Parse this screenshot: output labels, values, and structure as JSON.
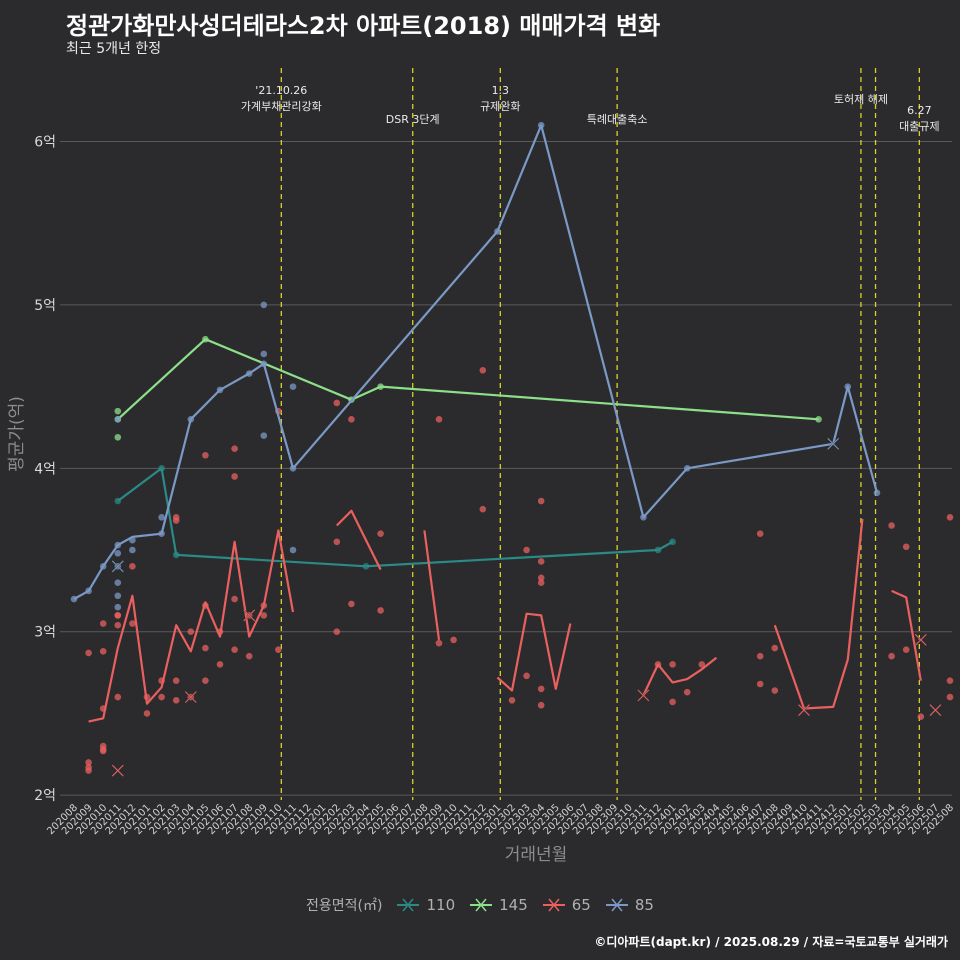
{
  "title": "정관가화만사성더테라스2차 아파트(2018) 매매가격 변화",
  "subtitle": "최근 5개년 한정",
  "credit": "©디아파트(dapt.kr) / 2025.08.29 / 자료=국토교통부 실거래가",
  "chart_data": {
    "type": "line",
    "xlabel": "거래년월",
    "ylabel": "평균가(억)",
    "ylim": [
      1.97,
      6.45
    ],
    "yticks": [
      2,
      3,
      4,
      5,
      6
    ],
    "ytick_labels": [
      "2억",
      "3억",
      "4억",
      "5억",
      "6억"
    ],
    "categories": [
      "202008",
      "202009",
      "202010",
      "202011",
      "202012",
      "202101",
      "202102",
      "202103",
      "202104",
      "202105",
      "202106",
      "202107",
      "202108",
      "202109",
      "202110",
      "202111",
      "202112",
      "202201",
      "202202",
      "202203",
      "202204",
      "202205",
      "202206",
      "202207",
      "202208",
      "202209",
      "202210",
      "202211",
      "202212",
      "202301",
      "202302",
      "202303",
      "202304",
      "202305",
      "202306",
      "202307",
      "202308",
      "202309",
      "202310",
      "202311",
      "202312",
      "202401",
      "202402",
      "202403",
      "202404",
      "202405",
      "202406",
      "202407",
      "202408",
      "202409",
      "202410",
      "202411",
      "202412",
      "202501",
      "202502",
      "202503",
      "202504",
      "202505",
      "202506",
      "202507",
      "202508"
    ],
    "annotations": [
      {
        "x": 14.2,
        "lines": [
          "'21.10.26",
          "가계부채관리강화"
        ]
      },
      {
        "x": 23.2,
        "lines": [
          "DSR 3단계"
        ]
      },
      {
        "x": 29.2,
        "lines": [
          "1.3",
          "규제완화"
        ]
      },
      {
        "x": 37.2,
        "lines": [
          "특례대출축소"
        ]
      },
      {
        "x": 53.9,
        "lines": [
          "토허제 해제"
        ]
      },
      {
        "x": 54.9,
        "lines": []
      },
      {
        "x": 57.9,
        "lines": [
          "6.27",
          "대출규제"
        ]
      }
    ],
    "legend_title": "전용면적(㎡)",
    "series": [
      {
        "name": "110",
        "color": "#2a8a86",
        "line": [
          [
            3,
            3.8
          ],
          [
            6,
            4.0
          ],
          [
            7,
            3.47
          ],
          [
            20,
            3.4
          ],
          [
            40,
            3.5
          ],
          [
            41,
            3.55
          ]
        ],
        "points": [
          [
            3,
            3.8
          ],
          [
            6,
            4.0
          ],
          [
            7,
            3.47
          ],
          [
            20,
            3.4
          ],
          [
            40,
            3.5
          ],
          [
            41,
            3.55
          ]
        ],
        "crosses": []
      },
      {
        "name": "145",
        "color": "#8de08a",
        "line": [
          [
            3,
            4.3
          ],
          [
            9,
            4.79
          ],
          [
            19,
            4.42
          ],
          [
            21,
            4.5
          ],
          [
            51,
            4.3
          ]
        ],
        "points": [
          [
            3,
            4.35
          ],
          [
            3,
            4.3
          ],
          [
            3,
            4.19
          ],
          [
            9,
            4.79
          ],
          [
            19,
            4.42
          ],
          [
            21,
            4.5
          ],
          [
            51,
            4.3
          ]
        ],
        "crosses": []
      },
      {
        "name": "65",
        "color": "#e9605f",
        "segments": [
          [
            [
              1,
              2.45
            ],
            [
              2,
              2.47
            ],
            [
              3,
              2.9
            ],
            [
              4,
              3.22
            ],
            [
              5,
              2.56
            ],
            [
              6,
              2.66
            ],
            [
              7,
              3.04
            ],
            [
              8,
              2.88
            ],
            [
              9,
              3.18
            ],
            [
              10,
              2.97
            ],
            [
              11,
              3.55
            ],
            [
              12,
              2.97
            ],
            [
              13,
              3.16
            ],
            [
              14,
              3.62
            ],
            [
              15,
              3.12
            ]
          ],
          [
            [
              18,
              3.65
            ],
            [
              19,
              3.74
            ],
            [
              21,
              3.38
            ]
          ],
          [
            [
              24,
              3.62
            ],
            [
              25,
              2.95
            ]
          ],
          [
            [
              29,
              2.72
            ],
            [
              30,
              2.64
            ],
            [
              31,
              3.11
            ],
            [
              32,
              3.1
            ],
            [
              33,
              2.65
            ],
            [
              34,
              3.05
            ]
          ],
          [
            [
              39,
              2.61
            ],
            [
              40,
              2.8
            ],
            [
              41,
              2.69
            ],
            [
              42,
              2.71
            ],
            [
              43,
              2.77
            ],
            [
              44,
              2.84
            ]
          ],
          [
            [
              48,
              3.04
            ],
            [
              50,
              2.53
            ],
            [
              52,
              2.54
            ],
            [
              53,
              2.83
            ],
            [
              54,
              3.69
            ]
          ],
          [
            [
              56,
              3.25
            ],
            [
              57,
              3.21
            ],
            [
              58,
              2.7
            ]
          ]
        ],
        "points": [
          [
            1,
            2.2
          ],
          [
            1,
            2.17
          ],
          [
            1,
            2.15
          ],
          [
            1,
            2.87
          ],
          [
            2,
            2.3
          ],
          [
            2,
            2.28
          ],
          [
            2,
            2.27
          ],
          [
            2,
            2.53
          ],
          [
            2,
            3.05
          ],
          [
            2,
            2.88
          ],
          [
            3,
            3.1
          ],
          [
            3,
            3.1
          ],
          [
            3,
            2.6
          ],
          [
            3,
            3.04
          ],
          [
            4,
            3.4
          ],
          [
            4,
            3.05
          ],
          [
            5,
            2.5
          ],
          [
            5,
            2.6
          ],
          [
            6,
            2.7
          ],
          [
            6,
            2.6
          ],
          [
            7,
            3.7
          ],
          [
            7,
            3.68
          ],
          [
            7,
            2.7
          ],
          [
            7,
            2.58
          ],
          [
            8,
            2.6
          ],
          [
            8,
            3.0
          ],
          [
            9,
            4.08
          ],
          [
            9,
            3.16
          ],
          [
            9,
            2.9
          ],
          [
            9,
            2.7
          ],
          [
            10,
            3.0
          ],
          [
            10,
            2.8
          ],
          [
            11,
            4.12
          ],
          [
            11,
            3.95
          ],
          [
            11,
            3.2
          ],
          [
            11,
            2.89
          ],
          [
            12,
            3.1
          ],
          [
            12,
            2.85
          ],
          [
            13,
            3.16
          ],
          [
            13,
            3.1
          ],
          [
            14,
            4.35
          ],
          [
            14,
            2.89
          ],
          [
            18,
            4.4
          ],
          [
            18,
            3.55
          ],
          [
            18,
            3.0
          ],
          [
            19,
            4.3
          ],
          [
            19,
            3.17
          ],
          [
            21,
            3.6
          ],
          [
            21,
            3.13
          ],
          [
            25,
            4.3
          ],
          [
            25,
            2.93
          ],
          [
            26,
            2.95
          ],
          [
            28,
            4.6
          ],
          [
            28,
            3.75
          ],
          [
            30,
            2.58
          ],
          [
            31,
            3.5
          ],
          [
            31,
            2.73
          ],
          [
            32,
            3.8
          ],
          [
            32,
            3.43
          ],
          [
            32,
            3.33
          ],
          [
            32,
            3.3
          ],
          [
            32,
            2.65
          ],
          [
            32,
            2.55
          ],
          [
            40,
            2.8
          ],
          [
            41,
            2.57
          ],
          [
            41,
            2.8
          ],
          [
            42,
            2.63
          ],
          [
            43,
            2.8
          ],
          [
            47,
            3.6
          ],
          [
            47,
            2.85
          ],
          [
            47,
            2.68
          ],
          [
            48,
            2.9
          ],
          [
            48,
            2.64
          ],
          [
            56,
            3.65
          ],
          [
            56,
            2.85
          ],
          [
            57,
            3.52
          ],
          [
            57,
            2.89
          ],
          [
            58,
            2.48
          ],
          [
            60,
            3.7
          ],
          [
            60,
            2.7
          ],
          [
            60,
            2.6
          ]
        ],
        "crosses": [
          [
            3,
            2.15
          ],
          [
            8,
            2.6
          ],
          [
            12,
            3.1
          ],
          [
            39,
            2.61
          ],
          [
            50,
            2.52
          ],
          [
            58,
            2.95
          ],
          [
            59,
            2.52
          ]
        ]
      },
      {
        "name": "85",
        "color": "#7b99c6",
        "line": [
          [
            0,
            3.2
          ],
          [
            1,
            3.25
          ],
          [
            2,
            3.4
          ],
          [
            3,
            3.53
          ],
          [
            4,
            3.58
          ],
          [
            6,
            3.6
          ],
          [
            8,
            4.3
          ],
          [
            10,
            4.48
          ],
          [
            12,
            4.58
          ],
          [
            13,
            4.64
          ],
          [
            15,
            4.0
          ],
          [
            29,
            5.45
          ],
          [
            32,
            6.1
          ],
          [
            39,
            3.7
          ],
          [
            42,
            4.0
          ],
          [
            52,
            4.15
          ],
          [
            53,
            4.5
          ],
          [
            55,
            3.85
          ]
        ],
        "points": [
          [
            0,
            3.2
          ],
          [
            1,
            3.25
          ],
          [
            2,
            3.4
          ],
          [
            3,
            3.53
          ],
          [
            3,
            3.48
          ],
          [
            3,
            3.4
          ],
          [
            3,
            3.3
          ],
          [
            3,
            3.22
          ],
          [
            3,
            3.15
          ],
          [
            3,
            4.3
          ],
          [
            4,
            3.56
          ],
          [
            4,
            3.5
          ],
          [
            6,
            3.7
          ],
          [
            6,
            3.6
          ],
          [
            8,
            4.3
          ],
          [
            10,
            4.48
          ],
          [
            12,
            4.58
          ],
          [
            13,
            5.0
          ],
          [
            13,
            4.7
          ],
          [
            13,
            4.64
          ],
          [
            13,
            4.2
          ],
          [
            15,
            4.5
          ],
          [
            15,
            4.0
          ],
          [
            15,
            3.5
          ],
          [
            29,
            5.45
          ],
          [
            32,
            6.1
          ],
          [
            39,
            3.7
          ],
          [
            42,
            4.0
          ],
          [
            53,
            4.5
          ],
          [
            55,
            3.85
          ]
        ],
        "crosses": [
          [
            3,
            3.4
          ],
          [
            52,
            4.15
          ]
        ]
      }
    ]
  }
}
